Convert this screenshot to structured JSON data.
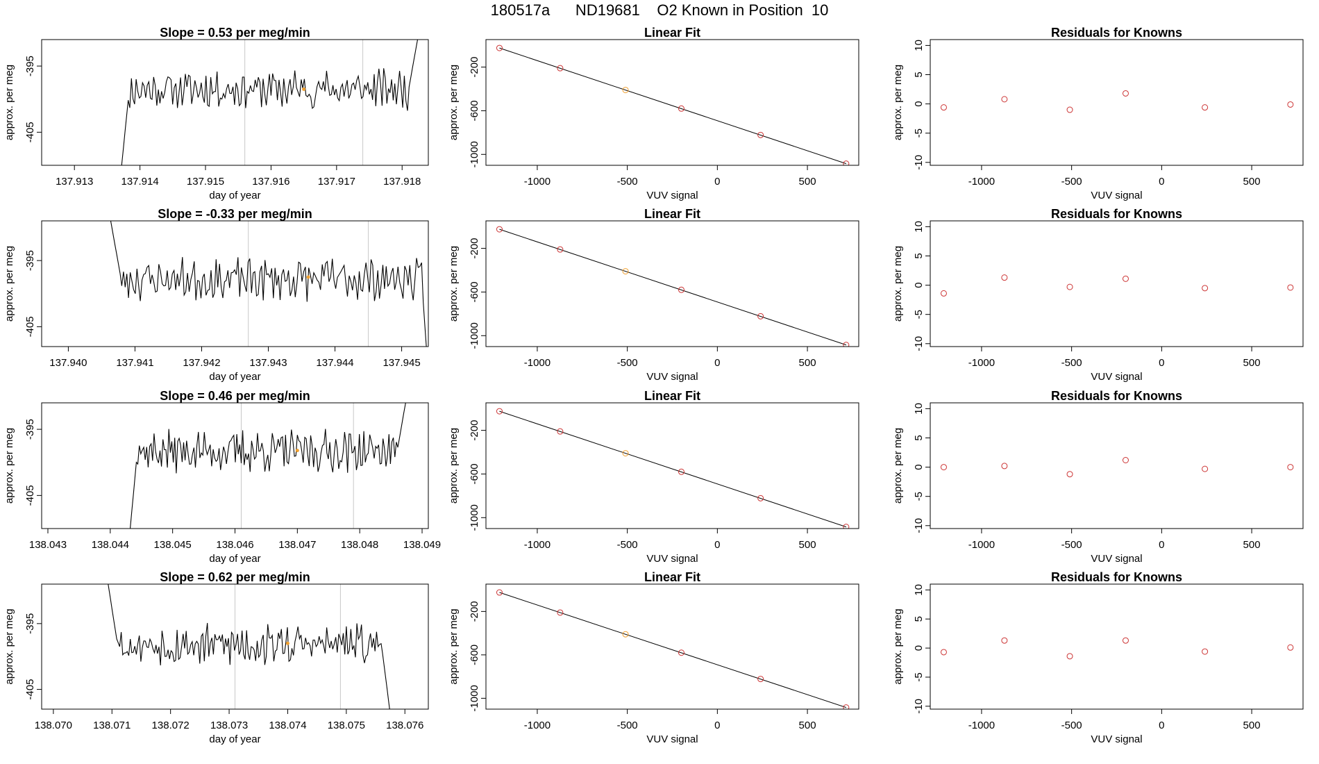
{
  "page_title": "180517a      ND19681    O2 Known in Position  10",
  "colors": {
    "line": "#000000",
    "point": "#cc3333",
    "highlight": "#f0a030",
    "vline": "#c8c8c8"
  },
  "chart_data": [
    {
      "type": "line",
      "row": 1,
      "title": "Slope =  0.53  per meg/min",
      "xlabel": "day of year",
      "ylabel": "approx. per meg",
      "xlim": [
        137.9125,
        137.9184
      ],
      "ylim": [
        -410,
        -391
      ],
      "xticks": [
        "137.913",
        "137.914",
        "137.915",
        "137.916",
        "137.917",
        "137.918"
      ],
      "yticks": [
        "-395",
        "-405"
      ],
      "vlines": [
        137.9156,
        137.9174
      ],
      "highlight_point": {
        "x": 137.9165,
        "y": -398.5
      },
      "start_x": 137.9137,
      "end_x": 137.9183,
      "level": -398.5,
      "noise": 1.5,
      "rise_x": 137.9181,
      "rise_to": -390,
      "seed": 11
    },
    {
      "type": "scatter",
      "row": 1,
      "title": "Linear Fit",
      "xlabel": "VUV signal",
      "ylabel": "approx. per meg",
      "xlim": [
        -1285,
        785
      ],
      "ylim": [
        -1100,
        52
      ],
      "xticks": [
        "-1000",
        "-500",
        "0",
        "500"
      ],
      "yticks": [
        "-200",
        "-600",
        "-1000"
      ],
      "fit_line": {
        "x1": -1210,
        "y1": -25,
        "x2": 715,
        "y2": -1085
      },
      "points": [
        {
          "x": -1210,
          "y": -25
        },
        {
          "x": -873,
          "y": -210
        },
        {
          "x": -510,
          "y": -410,
          "highlight": true
        },
        {
          "x": -200,
          "y": -580
        },
        {
          "x": 240,
          "y": -822
        },
        {
          "x": 715,
          "y": -1085
        }
      ]
    },
    {
      "type": "scatter",
      "row": 1,
      "title": "Residuals for Knowns",
      "xlabel": "VUV signal",
      "ylabel": "approx. per meg",
      "xlim": [
        -1285,
        785
      ],
      "ylim": [
        -10.5,
        11
      ],
      "xticks": [
        "-1000",
        "-500",
        "0",
        "500"
      ],
      "yticks": [
        "10",
        "5",
        "0",
        "-5",
        "-10"
      ],
      "points": [
        {
          "x": -1210,
          "y": -0.6
        },
        {
          "x": -873,
          "y": 0.8
        },
        {
          "x": -510,
          "y": -1.0
        },
        {
          "x": -200,
          "y": 1.8
        },
        {
          "x": 240,
          "y": -0.6
        },
        {
          "x": 715,
          "y": -0.1
        }
      ]
    },
    {
      "type": "line",
      "row": 2,
      "title": "Slope =  -0.33  per meg/min",
      "xlabel": "day of year",
      "ylabel": "approx. per meg",
      "xlim": [
        137.9396,
        137.9454
      ],
      "ylim": [
        -408,
        -389
      ],
      "xticks": [
        "137.940",
        "137.941",
        "137.942",
        "137.943",
        "137.944",
        "137.945"
      ],
      "yticks": [
        "-395",
        "-405"
      ],
      "vlines": [
        137.9427,
        137.9445
      ],
      "highlight_point": {
        "x": 137.9436,
        "y": -397.5
      },
      "start_x": 137.9406,
      "end_x": 137.9454,
      "level": -397.8,
      "noise": 1.6,
      "fall_x": 137.9453,
      "fall_to": -409,
      "seed": 23
    },
    {
      "type": "scatter",
      "row": 2,
      "title": "Linear Fit",
      "xlabel": "VUV signal",
      "ylabel": "approx. per meg",
      "xlim": [
        -1285,
        785
      ],
      "ylim": [
        -1100,
        52
      ],
      "xticks": [
        "-1000",
        "-500",
        "0",
        "500"
      ],
      "yticks": [
        "-200",
        "-600",
        "-1000"
      ],
      "fit_line": {
        "x1": -1210,
        "y1": -25,
        "x2": 715,
        "y2": -1085
      },
      "points": [
        {
          "x": -1210,
          "y": -25
        },
        {
          "x": -873,
          "y": -210
        },
        {
          "x": -510,
          "y": -410,
          "highlight": true
        },
        {
          "x": -200,
          "y": -580
        },
        {
          "x": 240,
          "y": -822
        },
        {
          "x": 715,
          "y": -1085
        }
      ]
    },
    {
      "type": "scatter",
      "row": 2,
      "title": "Residuals for Knowns",
      "xlabel": "VUV signal",
      "ylabel": "approx. per meg",
      "xlim": [
        -1285,
        785
      ],
      "ylim": [
        -10.5,
        11
      ],
      "xticks": [
        "-1000",
        "-500",
        "0",
        "500"
      ],
      "yticks": [
        "10",
        "5",
        "0",
        "-5",
        "-10"
      ],
      "points": [
        {
          "x": -1210,
          "y": -1.4
        },
        {
          "x": -873,
          "y": 1.3
        },
        {
          "x": -510,
          "y": -0.3
        },
        {
          "x": -200,
          "y": 1.1
        },
        {
          "x": 240,
          "y": -0.5
        },
        {
          "x": 715,
          "y": -0.4
        }
      ]
    },
    {
      "type": "line",
      "row": 3,
      "title": "Slope =  0.46  per meg/min",
      "xlabel": "day of year",
      "ylabel": "approx. per meg",
      "xlim": [
        138.0429,
        138.0491
      ],
      "ylim": [
        -410,
        -391
      ],
      "xticks": [
        "138.043",
        "138.044",
        "138.045",
        "138.046",
        "138.047",
        "138.048",
        "138.049"
      ],
      "yticks": [
        "-395",
        "-405"
      ],
      "vlines": [
        138.0461,
        138.0479
      ],
      "highlight_point": {
        "x": 138.047,
        "y": -398.2
      },
      "start_x": 138.0443,
      "end_x": 138.0488,
      "level": -398.3,
      "noise": 1.6,
      "rise_x": 138.0486,
      "rise_to": -390,
      "seed": 37
    },
    {
      "type": "scatter",
      "row": 3,
      "title": "Linear Fit",
      "xlabel": "VUV signal",
      "ylabel": "approx. per meg",
      "xlim": [
        -1285,
        785
      ],
      "ylim": [
        -1100,
        52
      ],
      "xticks": [
        "-1000",
        "-500",
        "0",
        "500"
      ],
      "yticks": [
        "-200",
        "-600",
        "-1000"
      ],
      "fit_line": {
        "x1": -1210,
        "y1": -25,
        "x2": 715,
        "y2": -1085
      },
      "points": [
        {
          "x": -1210,
          "y": -25
        },
        {
          "x": -873,
          "y": -210
        },
        {
          "x": -510,
          "y": -410,
          "highlight": true
        },
        {
          "x": -200,
          "y": -580
        },
        {
          "x": 240,
          "y": -822
        },
        {
          "x": 715,
          "y": -1085
        }
      ]
    },
    {
      "type": "scatter",
      "row": 3,
      "title": "Residuals for Knowns",
      "xlabel": "VUV signal",
      "ylabel": "approx. per meg",
      "xlim": [
        -1285,
        785
      ],
      "ylim": [
        -10.5,
        11
      ],
      "xticks": [
        "-1000",
        "-500",
        "0",
        "500"
      ],
      "yticks": [
        "10",
        "5",
        "0",
        "-5",
        "-10"
      ],
      "points": [
        {
          "x": -1210,
          "y": 0.0
        },
        {
          "x": -873,
          "y": 0.2
        },
        {
          "x": -510,
          "y": -1.2
        },
        {
          "x": -200,
          "y": 1.2
        },
        {
          "x": 240,
          "y": -0.3
        },
        {
          "x": 715,
          "y": 0.0
        }
      ]
    },
    {
      "type": "line",
      "row": 4,
      "title": "Slope =  0.62  per meg/min",
      "xlabel": "day of year",
      "ylabel": "approx. per meg",
      "xlim": [
        138.0698,
        138.0764
      ],
      "ylim": [
        -408,
        -389
      ],
      "xticks": [
        "138.070",
        "138.071",
        "138.072",
        "138.073",
        "138.074",
        "138.075",
        "138.076"
      ],
      "yticks": [
        "-395",
        "-405"
      ],
      "vlines": [
        138.0731,
        138.0749
      ],
      "highlight_point": {
        "x": 138.074,
        "y": -398.0
      },
      "start_x": 138.0709,
      "end_x": 138.0758,
      "level": -398.2,
      "noise": 1.6,
      "fall_x": 138.0756,
      "fall_to": -409,
      "seed": 53
    },
    {
      "type": "scatter",
      "row": 4,
      "title": "Linear Fit",
      "xlabel": "VUV signal",
      "ylabel": "approx. per meg",
      "xlim": [
        -1285,
        785
      ],
      "ylim": [
        -1100,
        52
      ],
      "xticks": [
        "-1000",
        "-500",
        "0",
        "500"
      ],
      "yticks": [
        "-200",
        "-600",
        "-1000"
      ],
      "fit_line": {
        "x1": -1210,
        "y1": -25,
        "x2": 715,
        "y2": -1085
      },
      "points": [
        {
          "x": -1210,
          "y": -25
        },
        {
          "x": -873,
          "y": -210
        },
        {
          "x": -510,
          "y": -410,
          "highlight": true
        },
        {
          "x": -200,
          "y": -580
        },
        {
          "x": 240,
          "y": -822
        },
        {
          "x": 715,
          "y": -1085
        }
      ]
    },
    {
      "type": "scatter",
      "row": 4,
      "title": "Residuals for Knowns",
      "xlabel": "VUV signal",
      "ylabel": "approx. per meg",
      "xlim": [
        -1285,
        785
      ],
      "ylim": [
        -10.5,
        11
      ],
      "xticks": [
        "-1000",
        "-500",
        "0",
        "500"
      ],
      "yticks": [
        "10",
        "5",
        "0",
        "-5",
        "-10"
      ],
      "points": [
        {
          "x": -1210,
          "y": -0.7
        },
        {
          "x": -873,
          "y": 1.3
        },
        {
          "x": -510,
          "y": -1.4
        },
        {
          "x": -200,
          "y": 1.3
        },
        {
          "x": 240,
          "y": -0.6
        },
        {
          "x": 715,
          "y": 0.1
        }
      ]
    }
  ]
}
